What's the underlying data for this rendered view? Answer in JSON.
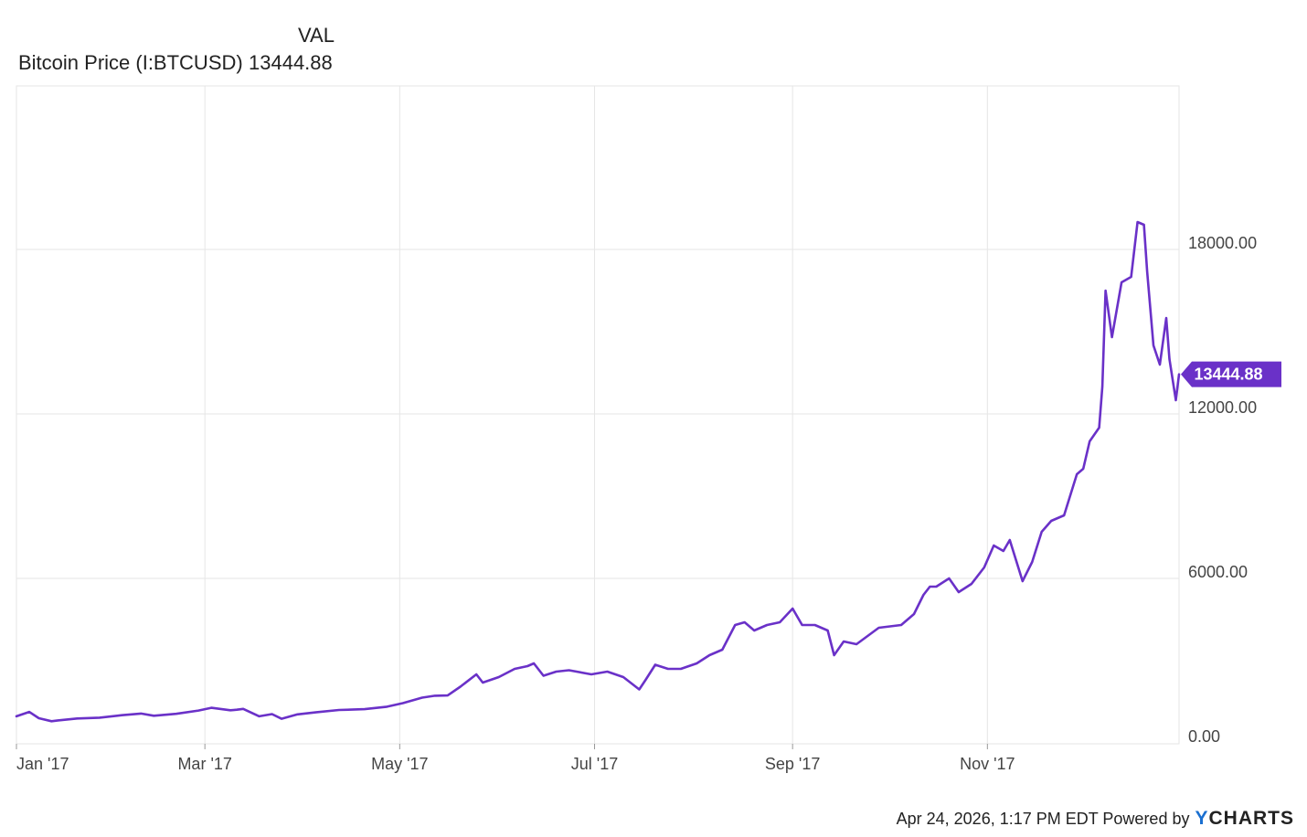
{
  "legend": {
    "column_header": "VAL",
    "series_name": "Bitcoin Price (I:BTCUSD)",
    "series_value": "13444.88"
  },
  "footer": {
    "timestamp_text": "Apr 24, 2026, 1:17 PM EDT Powered by",
    "brand_y": "Y",
    "brand_rest": "CHARTS"
  },
  "colors": {
    "series": "#6a31c8",
    "grid": "#e6e6e6",
    "axis_text": "#444444",
    "badge_text": "#ffffff"
  },
  "chart_data": {
    "type": "line",
    "series": [
      {
        "name": "Bitcoin Price (I:BTCUSD)",
        "last_value_label": "13444.88",
        "points": [
          [
            "2017-01-01",
            970
          ],
          [
            "2017-01-05",
            1130
          ],
          [
            "2017-01-08",
            900
          ],
          [
            "2017-01-12",
            790
          ],
          [
            "2017-01-14",
            820
          ],
          [
            "2017-01-20",
            890
          ],
          [
            "2017-01-27",
            920
          ],
          [
            "2017-02-03",
            1010
          ],
          [
            "2017-02-09",
            1070
          ],
          [
            "2017-02-13",
            990
          ],
          [
            "2017-02-20",
            1060
          ],
          [
            "2017-02-27",
            1180
          ],
          [
            "2017-03-03",
            1280
          ],
          [
            "2017-03-09",
            1190
          ],
          [
            "2017-03-11",
            1210
          ],
          [
            "2017-03-13",
            1240
          ],
          [
            "2017-03-18",
            970
          ],
          [
            "2017-03-22",
            1050
          ],
          [
            "2017-03-25",
            880
          ],
          [
            "2017-03-30",
            1040
          ],
          [
            "2017-04-05",
            1120
          ],
          [
            "2017-04-12",
            1200
          ],
          [
            "2017-04-20",
            1230
          ],
          [
            "2017-04-27",
            1320
          ],
          [
            "2017-05-02",
            1450
          ],
          [
            "2017-05-08",
            1650
          ],
          [
            "2017-05-12",
            1720
          ],
          [
            "2017-05-16",
            1730
          ],
          [
            "2017-05-20",
            2050
          ],
          [
            "2017-05-25",
            2500
          ],
          [
            "2017-05-27",
            2200
          ],
          [
            "2017-06-01",
            2400
          ],
          [
            "2017-06-06",
            2700
          ],
          [
            "2017-06-10",
            2800
          ],
          [
            "2017-06-12",
            2900
          ],
          [
            "2017-06-15",
            2450
          ],
          [
            "2017-06-19",
            2600
          ],
          [
            "2017-06-23",
            2650
          ],
          [
            "2017-06-30",
            2500
          ],
          [
            "2017-07-05",
            2600
          ],
          [
            "2017-07-10",
            2400
          ],
          [
            "2017-07-15",
            1950
          ],
          [
            "2017-07-17",
            2300
          ],
          [
            "2017-07-20",
            2850
          ],
          [
            "2017-07-24",
            2700
          ],
          [
            "2017-07-28",
            2700
          ],
          [
            "2017-08-02",
            2900
          ],
          [
            "2017-08-06",
            3200
          ],
          [
            "2017-08-10",
            3400
          ],
          [
            "2017-08-14",
            4300
          ],
          [
            "2017-08-17",
            4400
          ],
          [
            "2017-08-20",
            4100
          ],
          [
            "2017-08-24",
            4300
          ],
          [
            "2017-08-28",
            4400
          ],
          [
            "2017-09-01",
            4900
          ],
          [
            "2017-09-04",
            4300
          ],
          [
            "2017-09-08",
            4300
          ],
          [
            "2017-09-12",
            4100
          ],
          [
            "2017-09-14",
            3200
          ],
          [
            "2017-09-17",
            3700
          ],
          [
            "2017-09-21",
            3600
          ],
          [
            "2017-09-28",
            4200
          ],
          [
            "2017-10-05",
            4300
          ],
          [
            "2017-10-09",
            4700
          ],
          [
            "2017-10-12",
            5400
          ],
          [
            "2017-10-14",
            5700
          ],
          [
            "2017-10-16",
            5700
          ],
          [
            "2017-10-20",
            6000
          ],
          [
            "2017-10-23",
            5500
          ],
          [
            "2017-10-27",
            5800
          ],
          [
            "2017-10-31",
            6400
          ],
          [
            "2017-11-03",
            7200
          ],
          [
            "2017-11-06",
            7000
          ],
          [
            "2017-11-08",
            7400
          ],
          [
            "2017-11-12",
            5900
          ],
          [
            "2017-11-15",
            6600
          ],
          [
            "2017-11-18",
            7700
          ],
          [
            "2017-11-21",
            8100
          ],
          [
            "2017-11-25",
            8300
          ],
          [
            "2017-11-29",
            9800
          ],
          [
            "2017-12-01",
            10000
          ],
          [
            "2017-12-03",
            11000
          ],
          [
            "2017-12-06",
            11500
          ],
          [
            "2017-12-07",
            13000
          ],
          [
            "2017-12-08",
            16500
          ],
          [
            "2017-12-10",
            14800
          ],
          [
            "2017-12-13",
            16800
          ],
          [
            "2017-12-16",
            17000
          ],
          [
            "2017-12-18",
            19000
          ],
          [
            "2017-12-20",
            18900
          ],
          [
            "2017-12-21",
            17200
          ],
          [
            "2017-12-23",
            14500
          ],
          [
            "2017-12-25",
            13800
          ],
          [
            "2017-12-27",
            15500
          ],
          [
            "2017-12-28",
            14000
          ],
          [
            "2017-12-30",
            12500
          ],
          [
            "2017-12-31",
            13444.88
          ]
        ]
      }
    ],
    "x_ticks": [
      {
        "date": "2017-01-01",
        "label": "Jan '17"
      },
      {
        "date": "2017-03-01",
        "label": "Mar '17"
      },
      {
        "date": "2017-05-01",
        "label": "May '17"
      },
      {
        "date": "2017-07-01",
        "label": "Jul '17"
      },
      {
        "date": "2017-09-01",
        "label": "Sep '17"
      },
      {
        "date": "2017-11-01",
        "label": "Nov '17"
      }
    ],
    "y_ticks": [
      {
        "value": 0,
        "label": "0.00"
      },
      {
        "value": 6000,
        "label": "6000.00"
      },
      {
        "value": 12000,
        "label": "12000.00"
      },
      {
        "value": 18000,
        "label": "18000.00"
      }
    ],
    "xlim": [
      "2017-01-01",
      "2017-12-31"
    ],
    "ylim": [
      0,
      24000
    ],
    "grid": true,
    "y_axis_side": "right",
    "legend_placement": "top-left"
  }
}
